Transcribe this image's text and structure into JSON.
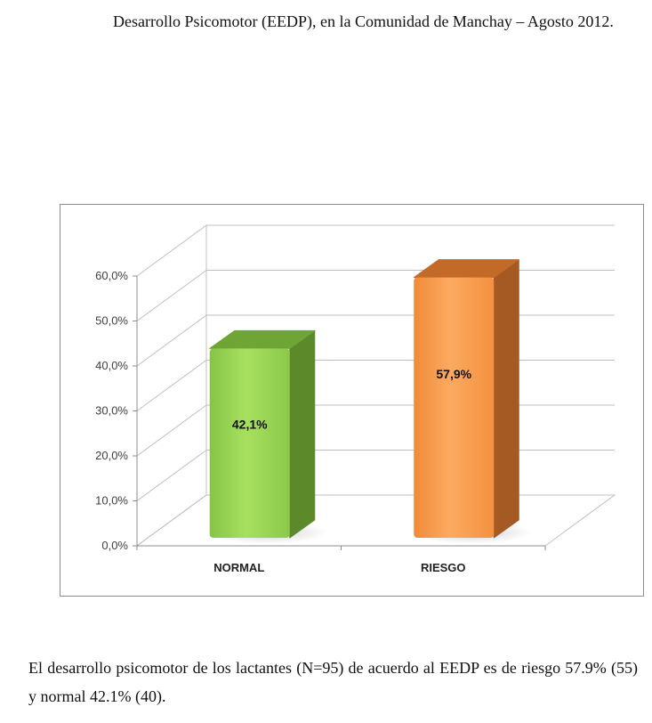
{
  "document": {
    "intro_text": "Desarrollo Psicomotor (EEDP), en la Comunidad de Manchay – Agosto 2012.",
    "summary_text": "El desarrollo psicomotor de los lactantes (N=95) de acuerdo al EEDP es de riesgo 57.9% (55) y normal 42.1% (40)."
  },
  "chart_data": {
    "type": "bar",
    "style": "3d-column",
    "categories": [
      "NORMAL",
      "RIESGO"
    ],
    "values": [
      42.1,
      57.9
    ],
    "data_labels": [
      "42,1%",
      "57,9%"
    ],
    "colors": [
      {
        "front": "#92d050",
        "front_light": "#a6e05e",
        "side": "#5c8a2a",
        "top": "#6fa534"
      },
      {
        "front": "#f79646",
        "front_light": "#fbaa60",
        "side": "#a45a22",
        "top": "#c46a28"
      }
    ],
    "ylim": [
      0,
      60
    ],
    "yticks": [
      0,
      10,
      20,
      30,
      40,
      50,
      60
    ],
    "ytick_labels": [
      "0,0%",
      "10,0%",
      "20,0%",
      "30,0%",
      "40,0%",
      "50,0%",
      "60,0%"
    ],
    "grid": true,
    "legend": "none",
    "title": "",
    "xlabel": "",
    "ylabel": ""
  }
}
